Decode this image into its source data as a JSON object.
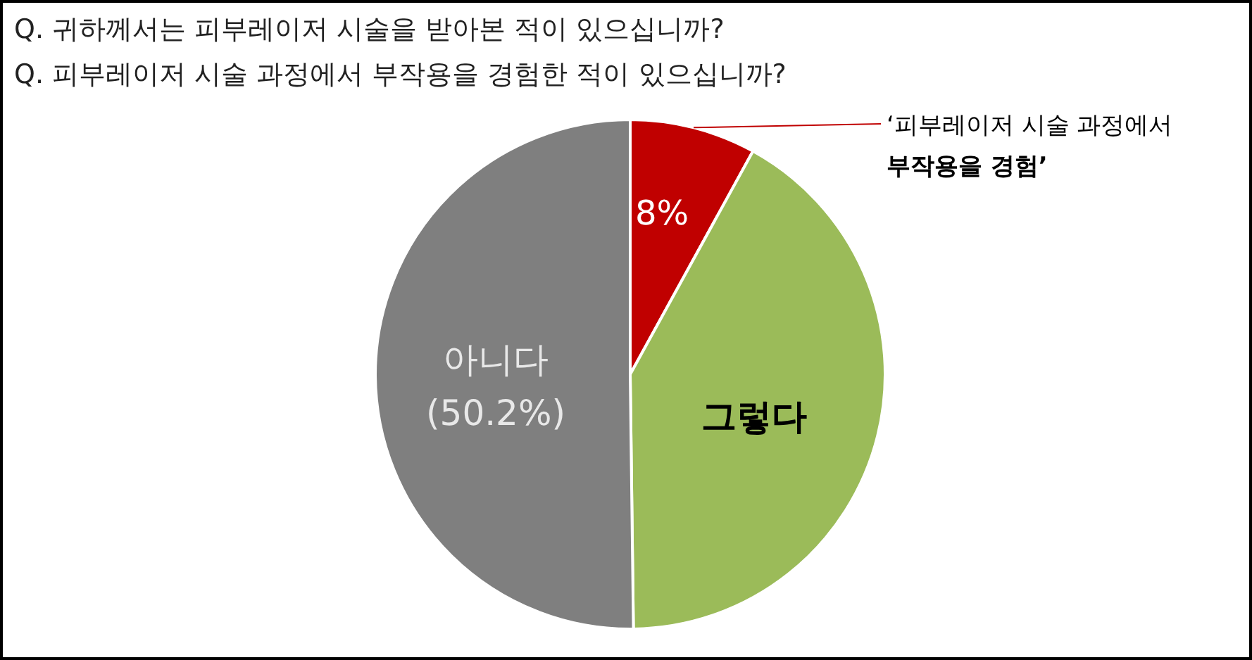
{
  "chart_data": {
    "type": "pie",
    "title": "Q. 귀하께서는 피부레이저 시술을 받아본 적이 있으십니까?",
    "subtitle": "Q. 피부레이저 시술 과정에서 부작용을 경험한 적이 있으십니까?",
    "categories": [
      "‘피부레이저 시술 과정에서\n부작용을 경험’",
      "그렇다",
      "아니다"
    ],
    "values": [
      8,
      41.8,
      50.2
    ],
    "colors": [
      "#c00000",
      "#9bbb59",
      "#7f7f7f"
    ],
    "value_labels": [
      "8%",
      null,
      "(50.2%)"
    ]
  }
}
